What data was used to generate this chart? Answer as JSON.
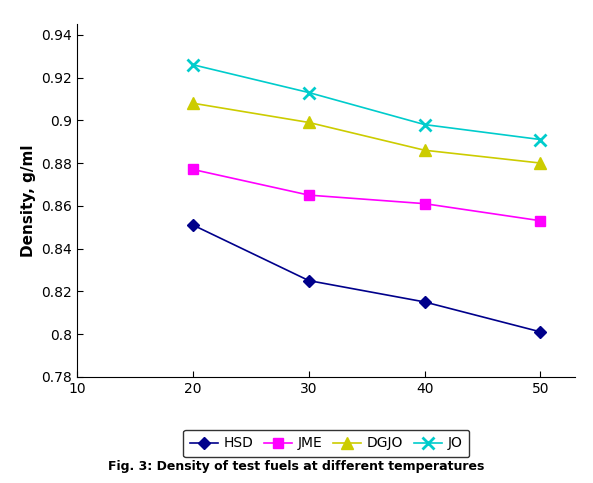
{
  "x": [
    20,
    30,
    40,
    50
  ],
  "series": {
    "HSD": [
      0.851,
      0.825,
      0.815,
      0.801
    ],
    "JME": [
      0.877,
      0.865,
      0.861,
      0.853
    ],
    "DGJO": [
      0.908,
      0.899,
      0.886,
      0.88
    ],
    "JO": [
      0.926,
      0.913,
      0.898,
      0.891
    ]
  },
  "colors": {
    "HSD": "#00008B",
    "JME": "#FF00FF",
    "DGJO": "#CCCC00",
    "JO": "#00CCCC"
  },
  "markers": {
    "HSD": "D",
    "JME": "s",
    "DGJO": "^",
    "JO": "x"
  },
  "marker_sizes": {
    "HSD": 6,
    "JME": 7,
    "DGJO": 8,
    "JO": 9
  },
  "ylabel": "Density, g/ml",
  "xlim": [
    10,
    53
  ],
  "ylim": [
    0.78,
    0.945
  ],
  "xticks": [
    10,
    20,
    30,
    40,
    50
  ],
  "ytick_values": [
    0.78,
    0.8,
    0.82,
    0.84,
    0.86,
    0.88,
    0.9,
    0.92,
    0.94
  ],
  "ytick_labels": [
    "0.78",
    "0.8",
    "0.82",
    "0.84",
    "0.86",
    "0.88",
    "0.9",
    "0.92",
    "0.94"
  ],
  "caption": "Fig. 3: Density of test fuels at different temperatures",
  "legend_order": [
    "HSD",
    "JME",
    "DGJO",
    "JO"
  ],
  "linewidth": 1.2
}
